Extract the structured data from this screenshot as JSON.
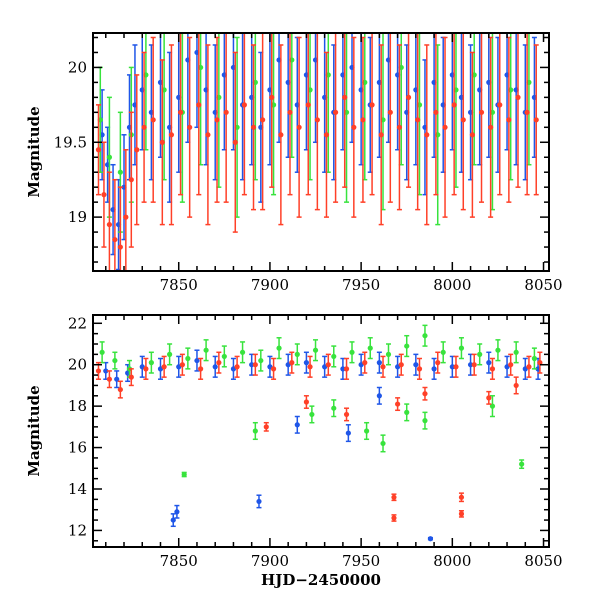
{
  "colors": {
    "blue": "#1f56e8",
    "green": "#38e33d",
    "red": "#ff4028",
    "axis": "#000000"
  },
  "chart_data": [
    {
      "type": "scatter",
      "title": "",
      "xlabel": "",
      "ylabel": "Magnitude",
      "xlim": [
        7803,
        8053
      ],
      "ylim": [
        20.23,
        18.64
      ],
      "y_inverted": true,
      "grid": false,
      "legend": "none",
      "x_ticks": [
        7850,
        7900,
        7950,
        8000,
        8050
      ],
      "y_ticks": [
        19,
        19.5,
        20
      ],
      "y_tick_labels": [
        "19",
        "19.5",
        "20"
      ],
      "error_bars": true,
      "series": [
        {
          "color": "blue",
          "x": [
            7808,
            7811,
            7814,
            7817,
            7820,
            7823,
            7826,
            7830,
            7835,
            7840,
            7845,
            7850,
            7855,
            7860,
            7865,
            7870,
            7875,
            7880,
            7885,
            7890,
            7895,
            7900,
            7905,
            7910,
            7915,
            7920,
            7925,
            7930,
            7935,
            7940,
            7945,
            7950,
            7955,
            7960,
            7965,
            7970,
            7975,
            7980,
            7985,
            7990,
            7995,
            8000,
            8005,
            8010,
            8015,
            8020,
            8025,
            8030,
            8035,
            8040,
            8045
          ],
          "y": [
            19.55,
            19.35,
            19.05,
            18.95,
            19.2,
            19.6,
            19.75,
            19.85,
            19.7,
            19.9,
            19.6,
            19.8,
            20.05,
            20.1,
            19.85,
            19.7,
            19.95,
            20.0,
            19.75,
            19.8,
            19.6,
            19.85,
            20.05,
            19.9,
            19.75,
            19.95,
            20.05,
            19.8,
            19.7,
            19.95,
            20.0,
            19.85,
            19.75,
            19.9,
            20.05,
            19.95,
            19.7,
            19.85,
            19.6,
            19.9,
            19.75,
            19.95,
            19.8,
            19.7,
            19.85,
            19.9,
            19.75,
            19.95,
            19.85,
            19.7,
            19.8
          ],
          "err": [
            0.3,
            0.25,
            0.3,
            0.3,
            0.35,
            0.35,
            0.4,
            0.4,
            0.45,
            0.5,
            0.5,
            0.5,
            0.55,
            0.5,
            0.5,
            0.45,
            0.5,
            0.55,
            0.5,
            0.45,
            0.5,
            0.5,
            0.55,
            0.5,
            0.45,
            0.5,
            0.55,
            0.5,
            0.45,
            0.5,
            0.5,
            0.5,
            0.45,
            0.5,
            0.55,
            0.5,
            0.45,
            0.5,
            0.45,
            0.5,
            0.45,
            0.5,
            0.5,
            0.45,
            0.5,
            0.5,
            0.45,
            0.5,
            0.5,
            0.45,
            0.4
          ]
        },
        {
          "color": "green",
          "x": [
            7807,
            7812,
            7818,
            7824,
            7832,
            7842,
            7852,
            7862,
            7872,
            7882,
            7892,
            7902,
            7912,
            7922,
            7932,
            7942,
            7952,
            7962,
            7972,
            7982,
            7992,
            8002,
            8012,
            8022,
            8032,
            8042
          ],
          "y": [
            19.65,
            19.4,
            19.3,
            19.55,
            19.95,
            19.85,
            19.7,
            20.0,
            19.8,
            19.6,
            19.9,
            19.75,
            20.05,
            19.85,
            19.95,
            19.7,
            19.9,
            19.65,
            20.0,
            19.75,
            19.55,
            19.85,
            19.95,
            19.7,
            19.85,
            19.9
          ],
          "err": [
            0.35,
            0.4,
            0.4,
            0.45,
            0.5,
            0.6,
            0.6,
            0.65,
            0.6,
            0.6,
            0.65,
            0.6,
            0.65,
            0.6,
            0.65,
            0.6,
            0.65,
            0.6,
            0.65,
            0.6,
            0.6,
            0.65,
            0.6,
            0.65,
            0.6,
            0.55
          ]
        },
        {
          "color": "red",
          "x": [
            7806,
            7809,
            7812,
            7815,
            7818,
            7821,
            7824,
            7827,
            7831,
            7836,
            7841,
            7846,
            7851,
            7856,
            7861,
            7866,
            7871,
            7876,
            7881,
            7886,
            7891,
            7896,
            7901,
            7906,
            7911,
            7916,
            7921,
            7926,
            7931,
            7936,
            7941,
            7946,
            7951,
            7956,
            7961,
            7966,
            7971,
            7976,
            7981,
            7986,
            7991,
            7996,
            8001,
            8006,
            8011,
            8016,
            8021,
            8026,
            8031,
            8036,
            8041,
            8046
          ],
          "y": [
            19.45,
            19.15,
            18.95,
            18.85,
            18.8,
            19.0,
            19.25,
            19.45,
            19.6,
            19.65,
            19.5,
            19.55,
            19.7,
            19.6,
            19.75,
            19.55,
            19.65,
            19.7,
            19.5,
            19.75,
            19.6,
            19.65,
            19.8,
            19.55,
            19.7,
            19.6,
            19.75,
            19.65,
            19.55,
            19.7,
            19.8,
            19.6,
            19.65,
            19.75,
            19.55,
            19.7,
            19.6,
            19.8,
            19.65,
            19.55,
            19.7,
            19.6,
            19.75,
            19.65,
            19.55,
            19.7,
            19.6,
            19.75,
            19.65,
            19.8,
            19.7,
            19.65
          ],
          "err": [
            0.3,
            0.35,
            0.35,
            0.4,
            0.4,
            0.45,
            0.45,
            0.5,
            0.5,
            0.55,
            0.55,
            0.6,
            0.55,
            0.6,
            0.6,
            0.6,
            0.55,
            0.6,
            0.6,
            0.6,
            0.55,
            0.6,
            0.6,
            0.6,
            0.55,
            0.6,
            0.6,
            0.6,
            0.55,
            0.6,
            0.6,
            0.6,
            0.55,
            0.6,
            0.6,
            0.6,
            0.55,
            0.6,
            0.6,
            0.6,
            0.55,
            0.6,
            0.6,
            0.6,
            0.55,
            0.6,
            0.6,
            0.6,
            0.55,
            0.6,
            0.55,
            0.5
          ]
        }
      ]
    },
    {
      "type": "scatter",
      "title": "",
      "xlabel": "HJD−2450000",
      "ylabel": "Magnitude",
      "xlim": [
        7803,
        8053
      ],
      "ylim": [
        22.4,
        11.2
      ],
      "y_inverted": true,
      "grid": false,
      "legend": "none",
      "x_ticks": [
        7850,
        7900,
        7950,
        8000,
        8050
      ],
      "y_ticks": [
        12,
        14,
        16,
        18,
        20,
        22
      ],
      "y_tick_labels": [
        "12",
        "14",
        "16",
        "18",
        "20",
        "22"
      ],
      "error_bars": true,
      "series": [
        {
          "color": "blue",
          "x": [
            7810,
            7816,
            7822,
            7830,
            7840,
            7850,
            7860,
            7870,
            7880,
            7890,
            7900,
            7910,
            7920,
            7930,
            7940,
            7950,
            7960,
            7970,
            7980,
            7990,
            8000,
            8010,
            8020,
            8030,
            8040,
            8047,
            7847,
            7849,
            7894,
            7915,
            7943,
            7960,
            7988
          ],
          "y": [
            19.7,
            19.3,
            19.6,
            19.9,
            19.8,
            19.9,
            20.2,
            19.9,
            19.8,
            20.0,
            19.9,
            20.0,
            20.1,
            19.9,
            19.8,
            20.0,
            20.1,
            19.9,
            20.0,
            19.8,
            19.9,
            20.0,
            20.1,
            19.9,
            19.8,
            19.8,
            12.5,
            12.9,
            13.4,
            17.1,
            16.7,
            18.5,
            11.6
          ],
          "err": [
            0.4,
            0.4,
            0.4,
            0.5,
            0.5,
            0.5,
            0.5,
            0.5,
            0.5,
            0.5,
            0.5,
            0.5,
            0.5,
            0.5,
            0.5,
            0.5,
            0.5,
            0.5,
            0.5,
            0.5,
            0.5,
            0.5,
            0.5,
            0.5,
            0.5,
            0.5,
            0.3,
            0.3,
            0.3,
            0.4,
            0.4,
            0.4,
            0.05
          ]
        },
        {
          "color": "green",
          "x": [
            7808,
            7815,
            7823,
            7835,
            7845,
            7855,
            7865,
            7875,
            7885,
            7895,
            7905,
            7915,
            7925,
            7935,
            7945,
            7955,
            7965,
            7975,
            7985,
            7995,
            8005,
            8015,
            8025,
            8035,
            8045,
            7853,
            7892,
            7923,
            7935,
            7953,
            7962,
            7975,
            7985,
            8022,
            8038
          ],
          "y": [
            20.6,
            20.2,
            19.8,
            20.1,
            20.5,
            20.3,
            20.7,
            20.4,
            20.6,
            20.2,
            20.8,
            20.5,
            20.7,
            20.4,
            20.6,
            20.8,
            20.5,
            20.9,
            21.4,
            20.6,
            20.8,
            20.5,
            20.7,
            20.6,
            20.3,
            14.7,
            16.8,
            17.6,
            17.9,
            16.8,
            16.2,
            17.7,
            17.3,
            18.0,
            15.2
          ],
          "err": [
            0.5,
            0.4,
            0.4,
            0.5,
            0.5,
            0.5,
            0.5,
            0.5,
            0.5,
            0.5,
            0.5,
            0.5,
            0.5,
            0.5,
            0.5,
            0.5,
            0.5,
            0.5,
            0.5,
            0.5,
            0.5,
            0.5,
            0.5,
            0.5,
            0.5,
            0.1,
            0.4,
            0.4,
            0.4,
            0.4,
            0.4,
            0.4,
            0.4,
            0.5,
            0.2
          ]
        },
        {
          "color": "red",
          "x": [
            7806,
            7812,
            7818,
            7824,
            7832,
            7842,
            7852,
            7862,
            7872,
            7882,
            7892,
            7902,
            7912,
            7922,
            7932,
            7942,
            7952,
            7962,
            7972,
            7982,
            7992,
            8002,
            8012,
            8022,
            8032,
            8042,
            8048,
            7898,
            7920,
            7942,
            7968,
            7968,
            7970,
            7985,
            8005,
            8005,
            8020,
            8035
          ],
          "y": [
            19.7,
            19.3,
            18.8,
            19.4,
            19.8,
            19.9,
            20.0,
            19.8,
            20.1,
            19.9,
            20.0,
            19.8,
            20.1,
            19.9,
            20.0,
            19.8,
            20.1,
            19.9,
            20.0,
            19.8,
            20.1,
            19.9,
            20.0,
            19.8,
            20.0,
            19.9,
            20.1,
            17.0,
            18.2,
            17.6,
            12.6,
            13.6,
            18.1,
            18.6,
            12.8,
            13.6,
            18.4,
            19.0
          ],
          "err": [
            0.4,
            0.4,
            0.4,
            0.4,
            0.5,
            0.5,
            0.5,
            0.5,
            0.5,
            0.5,
            0.5,
            0.5,
            0.5,
            0.5,
            0.5,
            0.5,
            0.5,
            0.5,
            0.5,
            0.5,
            0.5,
            0.5,
            0.5,
            0.5,
            0.5,
            0.5,
            0.5,
            0.2,
            0.3,
            0.3,
            0.15,
            0.15,
            0.3,
            0.3,
            0.15,
            0.2,
            0.3,
            0.4
          ]
        }
      ]
    }
  ]
}
